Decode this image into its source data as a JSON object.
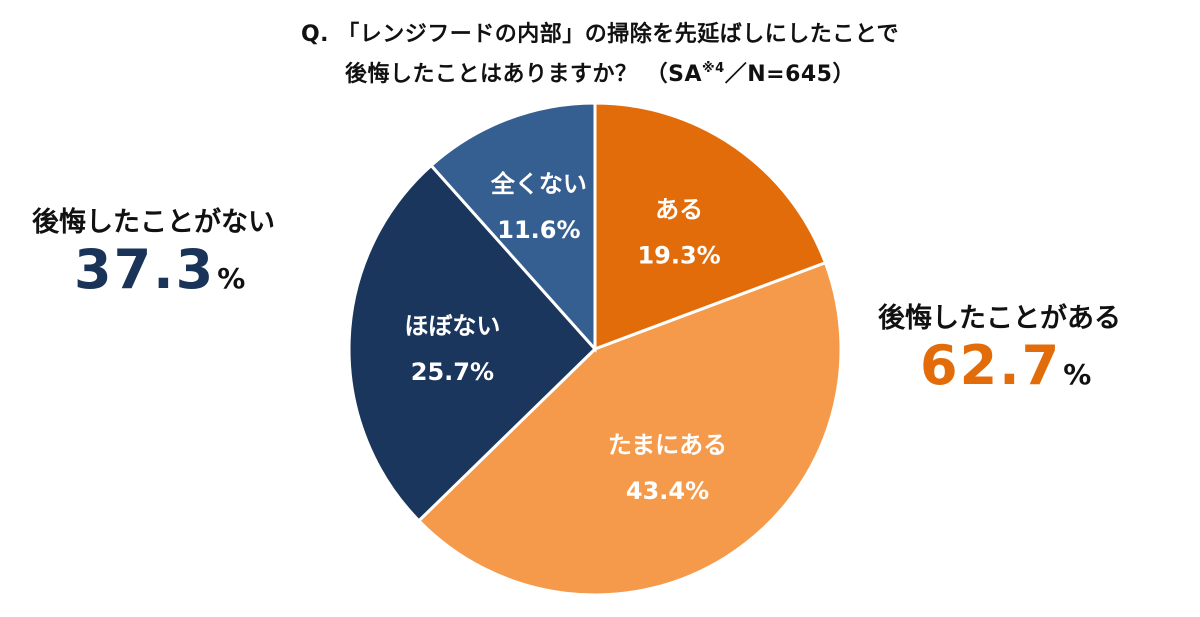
{
  "chart_data": {
    "type": "pie",
    "title_line1": "Q. 「レンジフードの内部」の掃除を先延ばしにしたことで",
    "title_line2_main": "後悔したことはありますか？ （SA",
    "title_line2_sup": "※4",
    "title_line2_tail": "／N=645）",
    "slices": [
      {
        "label": "ある",
        "value": 19.3,
        "value_text": "19.3%",
        "color": "#e36c0a"
      },
      {
        "label": "たまにある",
        "value": 43.4,
        "value_text": "43.4%",
        "color": "#f59a4a"
      },
      {
        "label": "ほぼない",
        "value": 25.7,
        "value_text": "25.7%",
        "color": "#1b365d"
      },
      {
        "label": "全くない",
        "value": 11.6,
        "value_text": "11.6%",
        "color": "#365f91"
      }
    ],
    "groups": {
      "regret_yes": {
        "label": "後悔したことがある",
        "value": "62.7",
        "unit": "%",
        "color": "#e36c0a"
      },
      "regret_no": {
        "label": "後悔したことがない",
        "value": "37.3",
        "unit": "%",
        "color": "#1a3358"
      }
    }
  }
}
